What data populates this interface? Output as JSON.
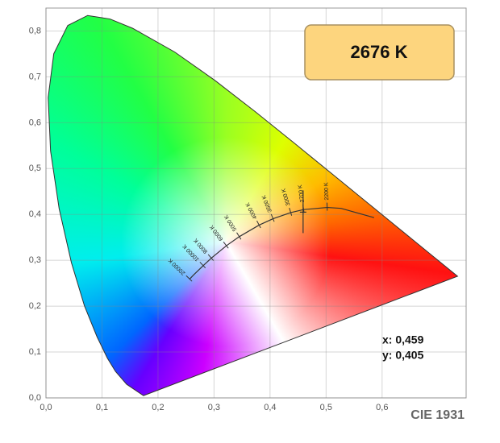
{
  "chart_data": {
    "type": "line",
    "title": "CIE 1931",
    "xlim": [
      0,
      0.75
    ],
    "ylim": [
      0,
      0.85
    ],
    "xticks": [
      {
        "value": 0,
        "label": "0,0"
      },
      {
        "value": 0.1,
        "label": "0,1"
      },
      {
        "value": 0.2,
        "label": "0,2"
      },
      {
        "value": 0.3,
        "label": "0,3"
      },
      {
        "value": 0.4,
        "label": "0,4"
      },
      {
        "value": 0.5,
        "label": "0,5"
      },
      {
        "value": 0.6,
        "label": "0,6"
      }
    ],
    "yticks": [
      {
        "value": 0,
        "label": "0,0"
      },
      {
        "value": 0.1,
        "label": "0,1"
      },
      {
        "value": 0.2,
        "label": "0,2"
      },
      {
        "value": 0.3,
        "label": "0,3"
      },
      {
        "value": 0.4,
        "label": "0,4"
      },
      {
        "value": 0.5,
        "label": "0,5"
      },
      {
        "value": 0.6,
        "label": "0,6"
      },
      {
        "value": 0.7,
        "label": "0,7"
      },
      {
        "value": 0.8,
        "label": "0,8"
      }
    ],
    "grid": true,
    "locus": {
      "x": [
        0.1741,
        0.144,
        0.1241,
        0.1096,
        0.0913,
        0.0687,
        0.0454,
        0.0235,
        0.0082,
        0.0039,
        0.0139,
        0.0389,
        0.0743,
        0.1142,
        0.1547,
        0.2296,
        0.3016,
        0.3731,
        0.4441,
        0.5125,
        0.5752,
        0.627,
        0.6915,
        0.7347
      ],
      "values": [
        0.005,
        0.0297,
        0.0578,
        0.0868,
        0.1327,
        0.2007,
        0.295,
        0.4127,
        0.5384,
        0.6548,
        0.7502,
        0.812,
        0.8338,
        0.8262,
        0.8059,
        0.7543,
        0.6923,
        0.6245,
        0.5547,
        0.4866,
        0.4242,
        0.3725,
        0.3083,
        0.2653
      ]
    },
    "planckian": {
      "x": [
        0.5857,
        0.5267,
        0.502,
        0.4599,
        0.4369,
        0.4053,
        0.3805,
        0.3451,
        0.3221,
        0.2952,
        0.2807,
        0.2637,
        0.2565
      ],
      "values": [
        0.3931,
        0.4133,
        0.4152,
        0.4106,
        0.4041,
        0.3907,
        0.3768,
        0.3516,
        0.3318,
        0.3048,
        0.2884,
        0.2683,
        0.2592
      ],
      "labels": [
        null,
        null,
        "2200 K",
        "2700 K",
        "3000 K",
        "3500 K",
        "4000 K",
        "5000 K",
        "6000 K",
        "8000 K",
        "10000 K",
        null,
        "20000 K"
      ]
    },
    "point": {
      "x": 0.459,
      "y": 0.405,
      "x_label": "x: 0,459",
      "y_label": "y: 0,405"
    },
    "cct": {
      "value": 2676,
      "label": "2676 K"
    }
  }
}
